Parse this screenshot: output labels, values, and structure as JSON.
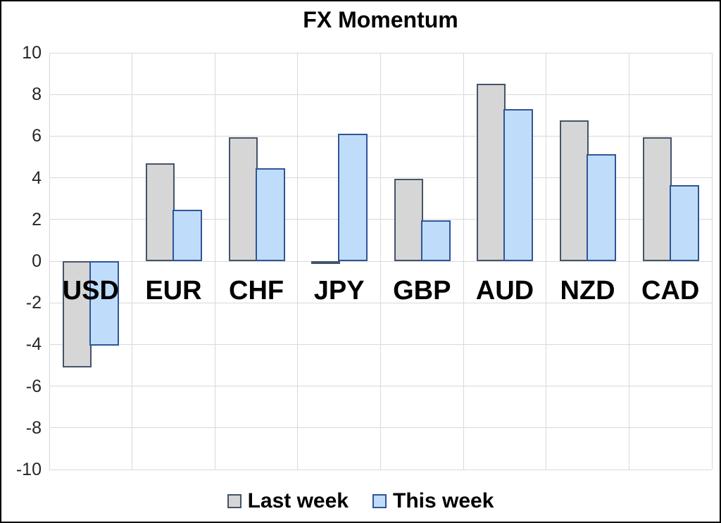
{
  "chart_data": {
    "type": "bar",
    "title": "FX Momentum",
    "categories": [
      "USD",
      "EUR",
      "CHF",
      "JPY",
      "GBP",
      "AUD",
      "NZD",
      "CAD"
    ],
    "series": [
      {
        "name": "Last week",
        "fill": "#D6D6D6",
        "border": "#44546A",
        "values": [
          -5.1,
          4.7,
          5.95,
          -0.1,
          3.95,
          8.5,
          6.75,
          5.95
        ]
      },
      {
        "name": "This week",
        "fill": "#BFDDFB",
        "border": "#2F5597",
        "values": [
          -4.05,
          2.45,
          4.45,
          6.1,
          1.95,
          7.3,
          5.15,
          3.65
        ]
      }
    ],
    "xlabel": "",
    "ylabel": "",
    "ylim": [
      -10,
      10
    ],
    "y_ticks": [
      10,
      8,
      6,
      4,
      2,
      0,
      -2,
      -4,
      -6,
      -8,
      -10
    ],
    "grid": true,
    "legend_position": "bottom",
    "gridline_color": "#D9D9D9",
    "tick_label_color": "#262626",
    "category_label_color": "#000000",
    "background_color": "#FFFFFF",
    "frame_color": "#000000"
  }
}
